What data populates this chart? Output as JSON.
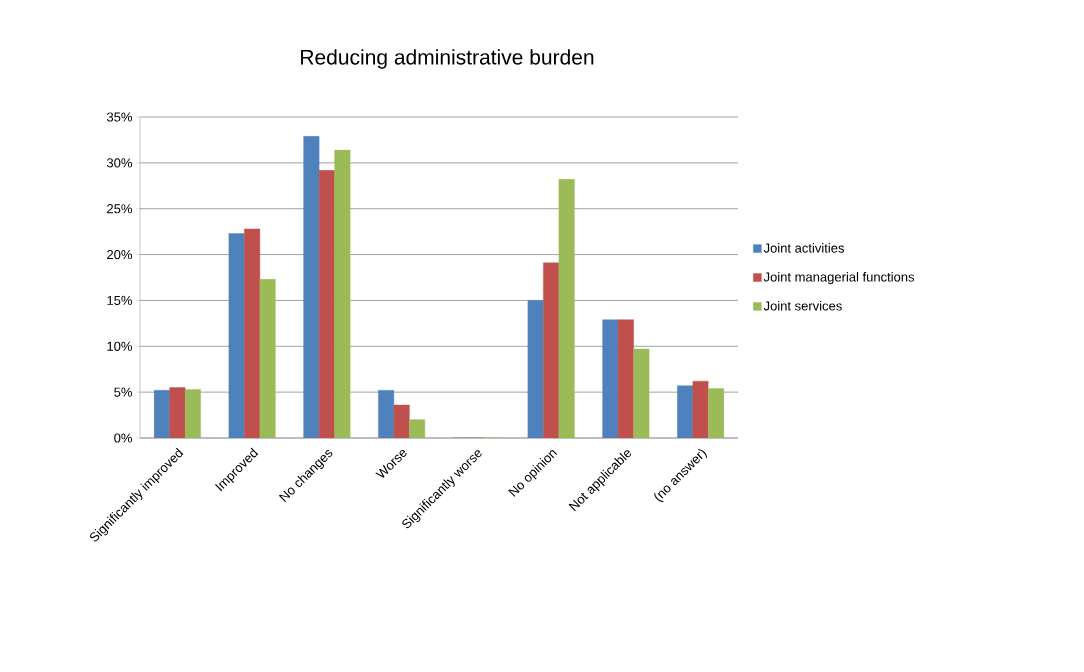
{
  "chart_data": {
    "type": "bar",
    "title": "Reducing administrative burden",
    "categories": [
      "Significantly improved",
      "Improved",
      "No changes",
      "Worse",
      "Significantly worse",
      "No opinion",
      "Not applicable",
      "(no answer)"
    ],
    "series": [
      {
        "name": "Joint activities",
        "color": "#4f81bd",
        "values": [
          5.2,
          22.3,
          32.9,
          5.2,
          0,
          15.0,
          12.9,
          5.7
        ]
      },
      {
        "name": "Joint managerial functions",
        "color": "#c0504d",
        "values": [
          5.5,
          22.8,
          29.2,
          3.6,
          0,
          19.1,
          12.9,
          6.2
        ]
      },
      {
        "name": "Joint services",
        "color": "#9bbb59",
        "values": [
          5.3,
          17.3,
          31.4,
          2.0,
          0,
          28.2,
          9.7,
          5.4
        ]
      }
    ],
    "ylim": [
      0,
      35
    ],
    "yticks": [
      {
        "value": 0,
        "label": "0%"
      },
      {
        "value": 5,
        "label": "5%"
      },
      {
        "value": 10,
        "label": "10%"
      },
      {
        "value": 15,
        "label": "15%"
      },
      {
        "value": 20,
        "label": "20%"
      },
      {
        "value": 25,
        "label": "25%"
      },
      {
        "value": 30,
        "label": "30%"
      },
      {
        "value": 35,
        "label": "35%"
      }
    ],
    "grid": "y",
    "legend": "right"
  }
}
